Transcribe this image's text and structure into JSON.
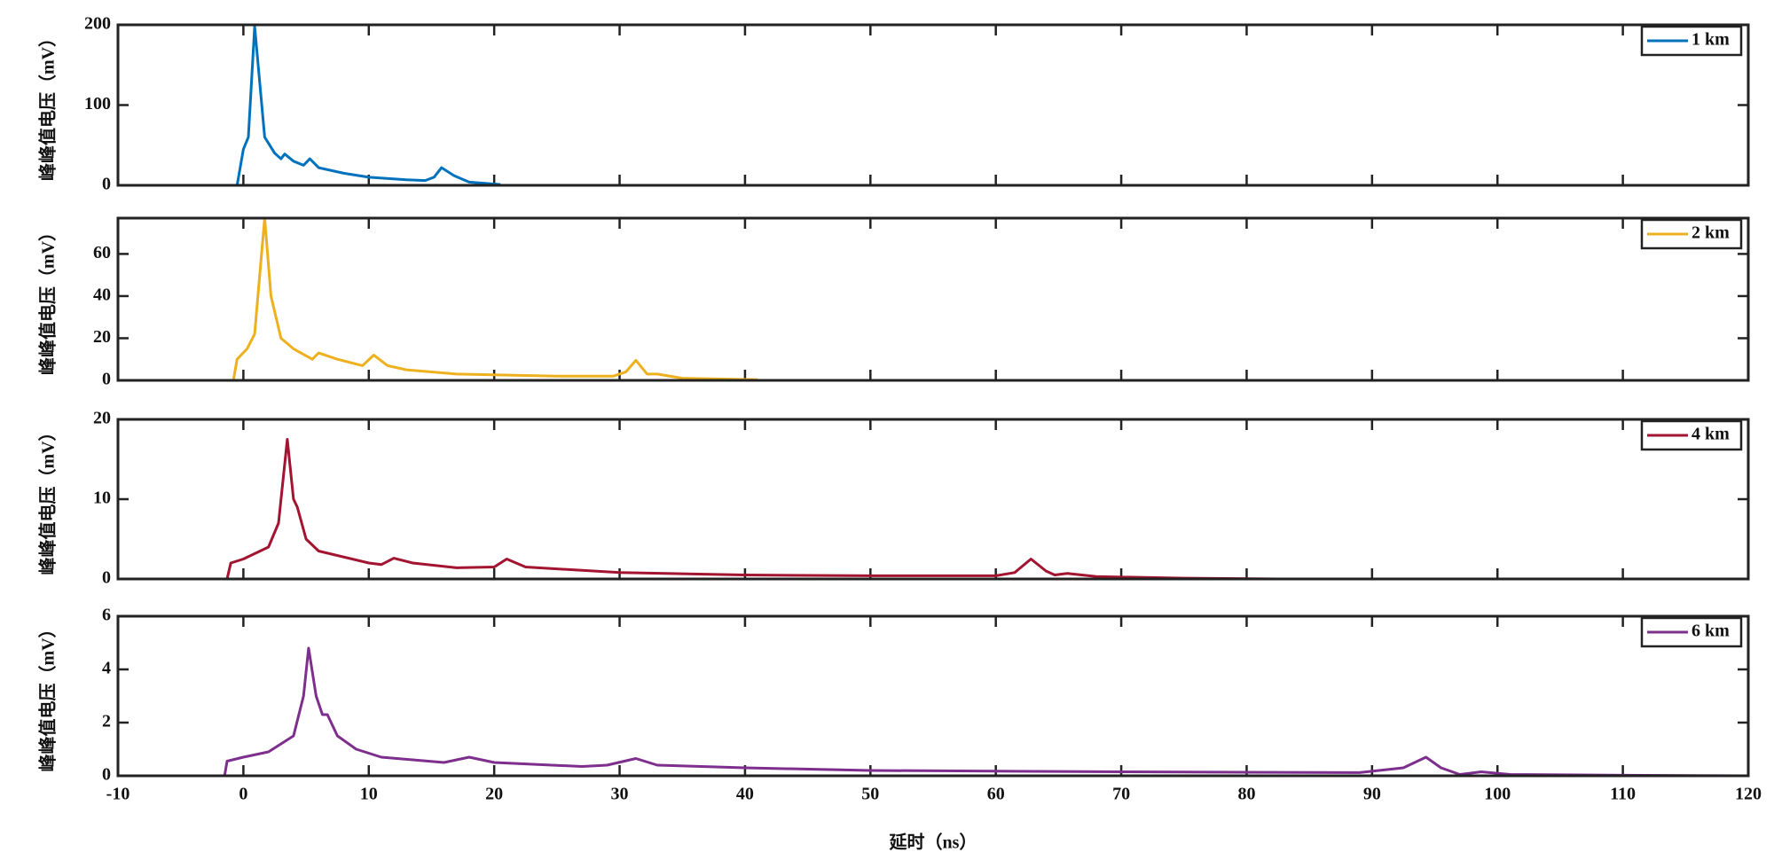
{
  "chart_data": [
    {
      "type": "line",
      "ylabel": "峰峰值电压（mV）",
      "xlim": [
        -10,
        120
      ],
      "xticks": [
        -10,
        0,
        10,
        20,
        30,
        40,
        50,
        60,
        70,
        80,
        90,
        100,
        110,
        120
      ],
      "ylim": [
        0,
        200
      ],
      "yticks": [
        0,
        100,
        200
      ],
      "legend": "top-right",
      "series": [
        {
          "name": "1 km",
          "color": "#0072BD",
          "x": [
            -3.1,
            -0.5,
            0,
            0.4,
            0.9,
            1.7,
            2.5,
            3,
            3.3,
            4,
            4.8,
            5.3,
            6,
            8,
            10,
            13,
            14.5,
            15.2,
            15.8,
            16.8,
            18,
            20.5
          ],
          "values": [
            0,
            0,
            45,
            60,
            198,
            60,
            40,
            33,
            39,
            30,
            25,
            33,
            22,
            15,
            10,
            7,
            6,
            10,
            22,
            12,
            4,
            1
          ]
        }
      ]
    },
    {
      "type": "line",
      "ylabel": "峰峰值电压（mV）",
      "xlim": [
        -10,
        120
      ],
      "xticks": [
        -10,
        0,
        10,
        20,
        30,
        40,
        50,
        60,
        70,
        80,
        90,
        100,
        110,
        120
      ],
      "ylim": [
        0,
        77
      ],
      "yticks": [
        0,
        20,
        40,
        60
      ],
      "legend": "top-right",
      "series": [
        {
          "name": "2 km",
          "color": "#EDB120",
          "x": [
            -6.2,
            -0.8,
            -0.5,
            0.3,
            0.9,
            1.3,
            1.7,
            2.2,
            3,
            4,
            5.5,
            6,
            7.5,
            9.5,
            10.4,
            11.5,
            13,
            17,
            25,
            29.5,
            30.5,
            31.3,
            32.2,
            33,
            35,
            41
          ],
          "values": [
            0,
            0,
            10,
            15,
            22,
            50,
            77,
            40,
            20,
            15,
            10,
            13,
            10,
            7,
            12,
            7,
            5,
            3,
            2,
            2,
            4,
            9.5,
            3,
            3,
            1,
            0.3
          ]
        }
      ]
    },
    {
      "type": "line",
      "ylabel": "峰峰值电压（mV）",
      "xlim": [
        -10,
        120
      ],
      "xticks": [
        -10,
        0,
        10,
        20,
        30,
        40,
        50,
        60,
        70,
        80,
        90,
        100,
        110,
        120
      ],
      "ylim": [
        0,
        20
      ],
      "yticks": [
        0,
        10,
        20
      ],
      "legend": "top-right",
      "series": [
        {
          "name": "4 km",
          "color": "#A2142F",
          "x": [
            -10,
            -1.3,
            -1,
            0,
            2,
            2.8,
            3.5,
            4,
            4.3,
            5,
            6,
            10,
            11,
            12,
            13.5,
            17,
            20,
            21,
            22.5,
            30,
            40,
            50,
            60,
            61.5,
            62.8,
            64,
            64.7,
            65.7,
            68,
            75,
            82.5
          ],
          "values": [
            0,
            0,
            2,
            2.5,
            4,
            7,
            17.5,
            10,
            9,
            5,
            3.5,
            2,
            1.8,
            2.6,
            2,
            1.4,
            1.5,
            2.5,
            1.5,
            0.8,
            0.5,
            0.4,
            0.4,
            0.8,
            2.5,
            1,
            0.5,
            0.7,
            0.3,
            0.1,
            0
          ]
        }
      ]
    },
    {
      "type": "line",
      "ylabel": "峰峰值电压（mV）",
      "xlabel": "延时（ns）",
      "xlim": [
        -10,
        120
      ],
      "xticks": [
        -10,
        0,
        10,
        20,
        30,
        40,
        50,
        60,
        70,
        80,
        90,
        100,
        110,
        120
      ],
      "ylim": [
        0,
        6
      ],
      "yticks": [
        0,
        2,
        4,
        6
      ],
      "legend": "top-right",
      "series": [
        {
          "name": "6 km",
          "color": "#7E2F8E",
          "x": [
            -10,
            -1.5,
            -1.3,
            0,
            2,
            4,
            4.8,
            5.2,
            5.8,
            6.3,
            6.7,
            7.5,
            9,
            11,
            16,
            18,
            20,
            27,
            29,
            31.3,
            33,
            40,
            50,
            70,
            89,
            92.5,
            94.3,
            95.5,
            97,
            98.7,
            101,
            110,
            120
          ],
          "values": [
            0,
            0,
            0.55,
            0.7,
            0.9,
            1.5,
            3,
            4.8,
            3,
            2.3,
            2.3,
            1.5,
            1,
            0.7,
            0.5,
            0.7,
            0.5,
            0.35,
            0.4,
            0.65,
            0.4,
            0.3,
            0.2,
            0.15,
            0.12,
            0.3,
            0.7,
            0.3,
            0.05,
            0.15,
            0.05,
            0.02,
            0
          ]
        }
      ]
    }
  ]
}
